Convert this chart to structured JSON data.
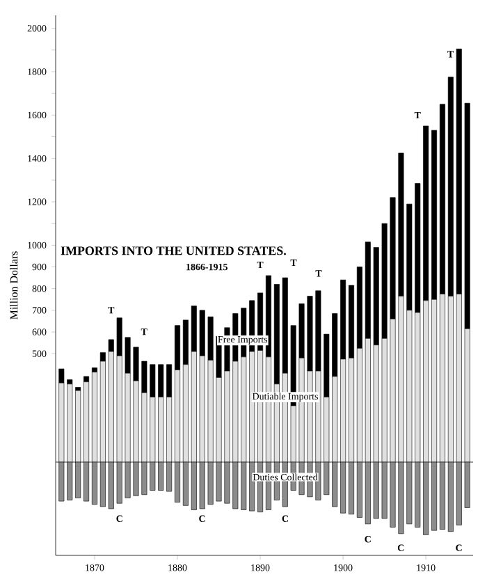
{
  "chart_data": {
    "type": "bar",
    "title": "IMPORTS INTO THE UNITED STATES.",
    "subtitle": "1866-1915",
    "ylabel": "Million Dollars",
    "x": [
      1866,
      1867,
      1868,
      1869,
      1870,
      1871,
      1872,
      1873,
      1874,
      1875,
      1876,
      1877,
      1878,
      1879,
      1880,
      1881,
      1882,
      1883,
      1884,
      1885,
      1886,
      1887,
      1888,
      1889,
      1890,
      1891,
      1892,
      1893,
      1894,
      1895,
      1896,
      1897,
      1898,
      1899,
      1900,
      1901,
      1902,
      1903,
      1904,
      1905,
      1906,
      1907,
      1908,
      1909,
      1910,
      1911,
      1912,
      1913,
      1914,
      1915
    ],
    "stacked": true,
    "series": [
      {
        "name": "Dutiable Imports",
        "color": "#e0e0e0",
        "values": [
          365,
          360,
          330,
          370,
          415,
          465,
          510,
          490,
          410,
          375,
          320,
          300,
          300,
          300,
          425,
          450,
          510,
          490,
          470,
          390,
          420,
          465,
          485,
          510,
          515,
          485,
          360,
          410,
          260,
          480,
          420,
          420,
          300,
          395,
          475,
          480,
          525,
          570,
          540,
          570,
          660,
          765,
          700,
          690,
          745,
          750,
          775,
          765,
          775,
          615
        ]
      },
      {
        "name": "Free Imports",
        "color": "#000000",
        "values": [
          65,
          20,
          15,
          25,
          20,
          40,
          55,
          175,
          165,
          155,
          145,
          150,
          150,
          150,
          205,
          205,
          210,
          210,
          200,
          190,
          200,
          220,
          225,
          235,
          265,
          375,
          460,
          440,
          370,
          250,
          345,
          370,
          290,
          290,
          365,
          335,
          375,
          445,
          450,
          530,
          560,
          660,
          490,
          595,
          805,
          780,
          875,
          1010,
          1130,
          1040
        ]
      },
      {
        "name": "Duties Collected",
        "color": "#8c8c8c",
        "values": [
          -180,
          -175,
          -165,
          -180,
          -195,
          -205,
          -215,
          -190,
          -165,
          -155,
          -150,
          -130,
          -130,
          -135,
          -185,
          -200,
          -220,
          -215,
          -195,
          -180,
          -190,
          -215,
          -220,
          -225,
          -230,
          -220,
          -175,
          -205,
          -130,
          -150,
          -160,
          -175,
          -150,
          -205,
          -235,
          -240,
          -255,
          -285,
          -260,
          -260,
          -300,
          -330,
          -285,
          -300,
          -335,
          -315,
          -310,
          -320,
          -290,
          -210
        ]
      }
    ],
    "xlim": [
      1865.3,
      1915.7
    ],
    "ylim": [
      -430,
      2060
    ],
    "xticks": [
      1870,
      1880,
      1890,
      1900,
      1910
    ],
    "yticks": [
      500,
      600,
      700,
      800,
      900,
      1000,
      {
        "value": 1100,
        "label": null
      },
      1200,
      {
        "value": 1300,
        "label": null
      },
      1400,
      {
        "value": 1500,
        "label": null
      },
      1600,
      {
        "value": 1700,
        "label": null
      },
      1800,
      {
        "value": 1900,
        "label": null
      },
      2000
    ],
    "annotations": [
      "T",
      "T",
      "T",
      "T",
      "T",
      "T",
      "T",
      "C",
      "C",
      "C",
      "C",
      "C",
      "C"
    ]
  }
}
